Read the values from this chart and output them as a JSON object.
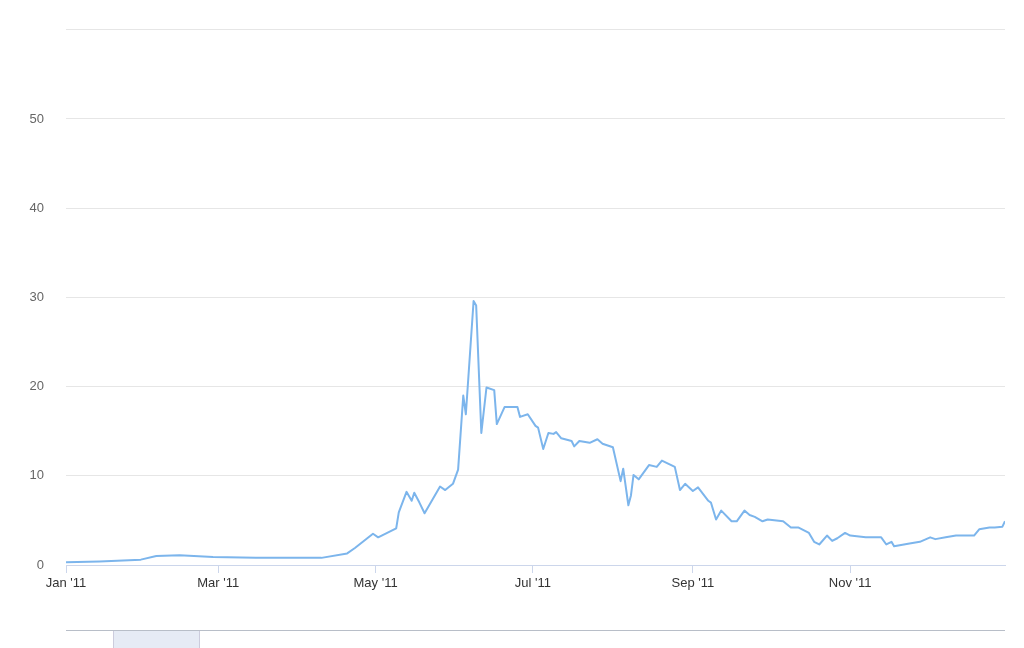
{
  "chart_data": {
    "type": "line",
    "x": [
      "2011-01-01",
      "2011-01-14",
      "2011-01-30",
      "2011-02-05",
      "2011-02-14",
      "2011-02-27",
      "2011-03-20",
      "2011-04-10",
      "2011-04-20",
      "2011-04-23",
      "2011-04-30",
      "2011-05-02",
      "2011-05-09",
      "2011-05-10",
      "2011-05-13",
      "2011-05-15",
      "2011-05-16",
      "2011-05-18",
      "2011-05-20",
      "2011-05-26",
      "2011-05-28",
      "2011-05-31",
      "2011-06-02",
      "2011-06-04",
      "2011-06-05",
      "2011-06-08",
      "2011-06-09",
      "2011-06-11",
      "2011-06-13",
      "2011-06-16",
      "2011-06-17",
      "2011-06-20",
      "2011-06-25",
      "2011-06-26",
      "2011-06-29",
      "2011-07-02",
      "2011-07-03",
      "2011-07-05",
      "2011-07-07",
      "2011-07-09",
      "2011-07-10",
      "2011-07-12",
      "2011-07-16",
      "2011-07-17",
      "2011-07-19",
      "2011-07-23",
      "2011-07-26",
      "2011-07-28",
      "2011-08-01",
      "2011-08-04",
      "2011-08-05",
      "2011-08-07",
      "2011-08-08",
      "2011-08-09",
      "2011-08-11",
      "2011-08-15",
      "2011-08-18",
      "2011-08-20",
      "2011-08-25",
      "2011-08-27",
      "2011-08-29",
      "2011-09-01",
      "2011-09-03",
      "2011-09-07",
      "2011-09-08",
      "2011-09-10",
      "2011-09-12",
      "2011-09-16",
      "2011-09-18",
      "2011-09-21",
      "2011-09-23",
      "2011-09-25",
      "2011-09-28",
      "2011-09-30",
      "2011-10-06",
      "2011-10-09",
      "2011-10-12",
      "2011-10-16",
      "2011-10-18",
      "2011-10-20",
      "2011-10-23",
      "2011-10-25",
      "2011-10-27",
      "2011-10-30",
      "2011-11-01",
      "2011-11-07",
      "2011-11-11",
      "2011-11-13",
      "2011-11-15",
      "2011-11-17",
      "2011-11-18",
      "2011-11-24",
      "2011-11-28",
      "2011-12-02",
      "2011-12-04",
      "2011-12-08",
      "2011-12-12",
      "2011-12-19",
      "2011-12-21",
      "2011-12-25",
      "2011-12-27",
      "2011-12-30",
      "2011-12-31"
    ],
    "series": [
      {
        "color": "#7cb5ec",
        "values": [
          0.3,
          0.4,
          0.6,
          1.0,
          1.1,
          0.9,
          0.8,
          0.8,
          1.3,
          1.9,
          3.5,
          3.1,
          4.1,
          5.9,
          8.2,
          7.2,
          8.1,
          7.0,
          5.8,
          8.8,
          8.4,
          9.1,
          10.7,
          19.0,
          16.9,
          29.6,
          29.1,
          14.8,
          19.9,
          19.6,
          15.8,
          17.7,
          17.7,
          16.6,
          16.9,
          15.6,
          15.4,
          13.0,
          14.8,
          14.7,
          14.9,
          14.2,
          13.9,
          13.3,
          13.9,
          13.7,
          14.1,
          13.6,
          13.2,
          9.4,
          10.8,
          6.7,
          7.8,
          10.1,
          9.6,
          11.2,
          11.0,
          11.7,
          11.0,
          8.4,
          9.1,
          8.3,
          8.7,
          7.2,
          7.0,
          5.1,
          6.1,
          4.9,
          4.9,
          6.1,
          5.6,
          5.4,
          4.9,
          5.1,
          4.9,
          4.2,
          4.2,
          3.6,
          2.6,
          2.3,
          3.3,
          2.7,
          3.0,
          3.6,
          3.3,
          3.1,
          3.1,
          3.1,
          2.3,
          2.6,
          2.1,
          2.4,
          2.6,
          3.1,
          2.9,
          3.1,
          3.3,
          3.3,
          4.0,
          4.2,
          4.2,
          4.3,
          4.9
        ]
      }
    ],
    "xlim": [
      "2011-01-01",
      "2011-12-31"
    ],
    "xticks": [
      {
        "value": "2011-01-01",
        "label": "Jan '11"
      },
      {
        "value": "2011-03-01",
        "label": "Mar '11"
      },
      {
        "value": "2011-05-01",
        "label": "May '11"
      },
      {
        "value": "2011-07-01",
        "label": "Jul '11"
      },
      {
        "value": "2011-09-01",
        "label": "Sep '11"
      },
      {
        "value": "2011-11-01",
        "label": "Nov '11"
      }
    ],
    "ylim": [
      0,
      60
    ],
    "yticks": [
      0,
      10,
      20,
      30,
      40,
      50,
      {
        "value": 60,
        "label": null
      }
    ],
    "grid": "y",
    "legend": false,
    "marker": "none",
    "line_style": "solid"
  }
}
